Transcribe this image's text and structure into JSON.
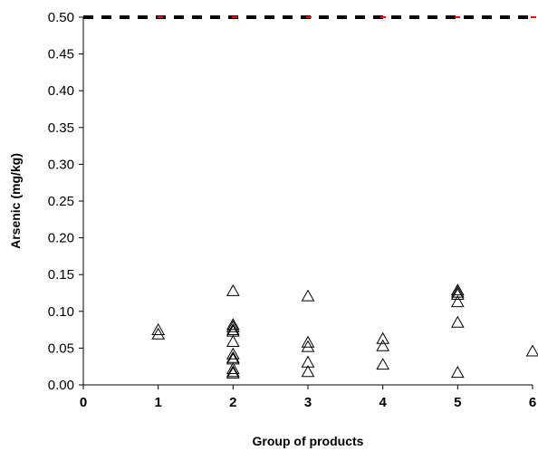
{
  "chart_data": {
    "type": "scatter",
    "title": "",
    "xlabel": "Group of products",
    "ylabel": "Arsenic (mg/kg)",
    "xlim": [
      0,
      6
    ],
    "ylim": [
      0,
      0.5
    ],
    "x_ticks": [
      "0",
      "1",
      "2",
      "3",
      "4",
      "5",
      "6"
    ],
    "y_ticks": [
      "0.00",
      "0.05",
      "0.10",
      "0.15",
      "0.20",
      "0.25",
      "0.30",
      "0.35",
      "0.40",
      "0.45",
      "0.50"
    ],
    "grid": false,
    "legend": "none",
    "limit_line": {
      "y": 0.5,
      "style": "dashed",
      "colors": [
        "#000000",
        "#ff0000"
      ]
    },
    "marker": "open-triangle",
    "series": [
      {
        "points": [
          {
            "x": 1,
            "y": 0.074
          },
          {
            "x": 1,
            "y": 0.068
          },
          {
            "x": 2,
            "y": 0.127
          },
          {
            "x": 2,
            "y": 0.081
          },
          {
            "x": 2,
            "y": 0.078
          },
          {
            "x": 2,
            "y": 0.074
          },
          {
            "x": 2,
            "y": 0.072
          },
          {
            "x": 2,
            "y": 0.058
          },
          {
            "x": 2,
            "y": 0.041
          },
          {
            "x": 2,
            "y": 0.036
          },
          {
            "x": 2,
            "y": 0.034
          },
          {
            "x": 2,
            "y": 0.021
          },
          {
            "x": 2,
            "y": 0.017
          },
          {
            "x": 2,
            "y": 0.015
          },
          {
            "x": 3,
            "y": 0.12
          },
          {
            "x": 3,
            "y": 0.057
          },
          {
            "x": 3,
            "y": 0.051
          },
          {
            "x": 3,
            "y": 0.03
          },
          {
            "x": 3,
            "y": 0.017
          },
          {
            "x": 4,
            "y": 0.062
          },
          {
            "x": 4,
            "y": 0.052
          },
          {
            "x": 4,
            "y": 0.027
          },
          {
            "x": 5,
            "y": 0.128
          },
          {
            "x": 5,
            "y": 0.125
          },
          {
            "x": 5,
            "y": 0.122
          },
          {
            "x": 5,
            "y": 0.112
          },
          {
            "x": 5,
            "y": 0.084
          },
          {
            "x": 5,
            "y": 0.016
          },
          {
            "x": 6,
            "y": 0.045
          }
        ]
      }
    ]
  }
}
